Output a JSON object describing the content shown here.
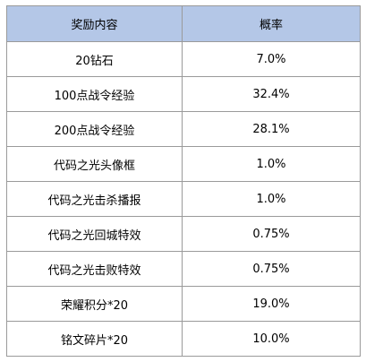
{
  "table": {
    "headers": [
      "奖励内容",
      "概率"
    ],
    "rows": [
      {
        "item": "20钻石",
        "rate": "7.0%"
      },
      {
        "item": "100点战令经验",
        "rate": "32.4%"
      },
      {
        "item": "200点战令经验",
        "rate": "28.1%"
      },
      {
        "item": "代码之光头像框",
        "rate": "1.0%"
      },
      {
        "item": "代码之光击杀播报",
        "rate": "1.0%"
      },
      {
        "item": "代码之光回城特效",
        "rate": "0.75%"
      },
      {
        "item": "代码之光击败特效",
        "rate": "0.75%"
      },
      {
        "item": "荣耀积分*20",
        "rate": "19.0%"
      },
      {
        "item": "铭文碎片*20",
        "rate": "10.0%"
      }
    ]
  },
  "colors": {
    "header_bg": "#b4c7e7",
    "border": "#9a9a9a"
  }
}
